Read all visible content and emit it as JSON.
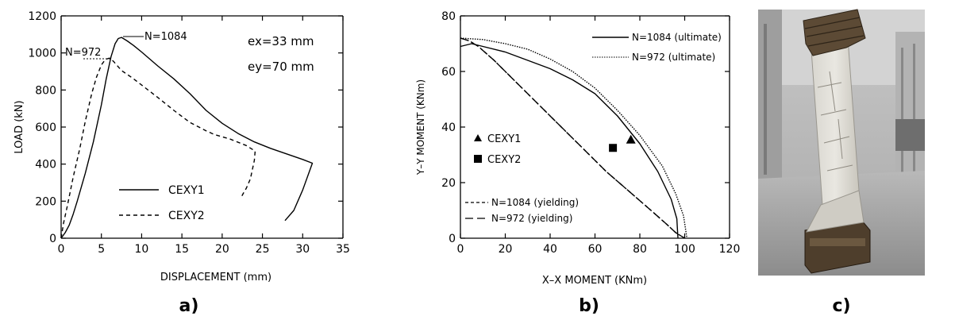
{
  "chart_data": [
    {
      "id": "a",
      "type": "line",
      "caption": "a)",
      "xlabel": "DISPLACEMENT (mm)",
      "ylabel": "LOAD (kN)",
      "xlim": [
        0,
        35
      ],
      "ylim": [
        0,
        1200
      ],
      "xticks": [
        "0",
        "5",
        "10",
        "15",
        "20",
        "25",
        "30",
        "35"
      ],
      "yticks": [
        "0",
        "200",
        "400",
        "600",
        "800",
        "1000",
        "1200"
      ],
      "grid": false,
      "annotations": [
        "N=1084",
        "N=972",
        "ex=33  mm",
        "ey=70  mm"
      ],
      "legend": {
        "placement": "center-left",
        "entries": [
          {
            "label": "CEXY1",
            "style": "solid"
          },
          {
            "label": "CEXY2",
            "style": "dashed"
          }
        ]
      },
      "series": [
        {
          "name": "CEXY1",
          "style": "solid",
          "points": [
            [
              0,
              0
            ],
            [
              0.5,
              30
            ],
            [
              1,
              70
            ],
            [
              1.5,
              130
            ],
            [
              2,
              200
            ],
            [
              3,
              350
            ],
            [
              4,
              520
            ],
            [
              5,
              720
            ],
            [
              5.6,
              860
            ],
            [
              6.2,
              980
            ],
            [
              6.7,
              1050
            ],
            [
              7.1,
              1078
            ],
            [
              7.5,
              1084
            ],
            [
              8.2,
              1065
            ],
            [
              9,
              1040
            ],
            [
              10,
              1005
            ],
            [
              12,
              930
            ],
            [
              14,
              860
            ],
            [
              16,
              780
            ],
            [
              18,
              690
            ],
            [
              20,
              620
            ],
            [
              22,
              565
            ],
            [
              24,
              520
            ],
            [
              26,
              485
            ],
            [
              28,
              455
            ],
            [
              30,
              425
            ],
            [
              31.2,
              405
            ],
            [
              30,
              260
            ],
            [
              28.9,
              150
            ],
            [
              27.8,
              95
            ]
          ]
        },
        {
          "name": "CEXY2",
          "style": "dashed",
          "points": [
            [
              0,
              0
            ],
            [
              0.3,
              80
            ],
            [
              0.8,
              180
            ],
            [
              1.5,
              330
            ],
            [
              2.3,
              480
            ],
            [
              3,
              630
            ],
            [
              3.8,
              780
            ],
            [
              4.4,
              870
            ],
            [
              5,
              935
            ],
            [
              5.5,
              965
            ],
            [
              6,
              972
            ],
            [
              6.5,
              955
            ],
            [
              7.5,
              905
            ],
            [
              9,
              860
            ],
            [
              10.5,
              810
            ],
            [
              12,
              760
            ],
            [
              14,
              690
            ],
            [
              16,
              625
            ],
            [
              18,
              580
            ],
            [
              19,
              560
            ],
            [
              21,
              535
            ],
            [
              23,
              500
            ],
            [
              24.1,
              470
            ],
            [
              24,
              420
            ],
            [
              23.8,
              380
            ],
            [
              23.5,
              320
            ],
            [
              23,
              270
            ],
            [
              22.6,
              240
            ],
            [
              22.3,
              215
            ]
          ]
        }
      ]
    },
    {
      "id": "b",
      "type": "line",
      "caption": "b)",
      "xlabel": "X–X MOMENT (KNm)",
      "ylabel": "Y–Y MOMENT (KNm)",
      "xlim": [
        0,
        120
      ],
      "ylim": [
        0,
        80
      ],
      "xticks": [
        "0",
        "20",
        "40",
        "60",
        "80",
        "100",
        "120"
      ],
      "yticks": [
        "0",
        "20",
        "40",
        "60",
        "80"
      ],
      "grid": false,
      "legend_top": [
        {
          "label": "N=1084 (ultimate)",
          "style": "solid"
        },
        {
          "label": "N=972 (ultimate)",
          "style": "dotted"
        }
      ],
      "legend_bottom": [
        {
          "label": "N=1084 (yielding)",
          "style": "short-dash"
        },
        {
          "label": "N=972 (yielding)",
          "style": "long-dash"
        }
      ],
      "series": [
        {
          "name": "N=1084 (ultimate)",
          "style": "solid",
          "points": [
            [
              0,
              69
            ],
            [
              5,
              70
            ],
            [
              10,
              69
            ],
            [
              20,
              67
            ],
            [
              30,
              64
            ],
            [
              40,
              61
            ],
            [
              50,
              57
            ],
            [
              60,
              52
            ],
            [
              70,
              44
            ],
            [
              80,
              34
            ],
            [
              88,
              24
            ],
            [
              94,
              14
            ],
            [
              96.5,
              7
            ],
            [
              97,
              0
            ]
          ]
        },
        {
          "name": "N=972 (ultimate)",
          "style": "dotted",
          "points": [
            [
              0,
              72
            ],
            [
              10,
              71.5
            ],
            [
              20,
              70
            ],
            [
              30,
              68
            ],
            [
              40,
              64.5
            ],
            [
              50,
              60
            ],
            [
              60,
              54
            ],
            [
              70,
              46
            ],
            [
              80,
              37
            ],
            [
              90,
              26
            ],
            [
              96,
              16
            ],
            [
              99.5,
              8
            ],
            [
              101,
              0
            ]
          ]
        },
        {
          "name": "N=1084 (yielding)",
          "style": "short-dash",
          "points": [
            [
              0,
              72
            ],
            [
              4,
              71
            ],
            [
              8,
              69
            ],
            [
              15,
              64
            ],
            [
              25,
              56
            ],
            [
              35,
              48
            ],
            [
              45,
              40
            ],
            [
              55,
              32
            ],
            [
              65,
              24
            ],
            [
              75,
              17
            ],
            [
              85,
              10
            ],
            [
              92,
              5
            ],
            [
              96,
              2
            ],
            [
              100,
              0
            ]
          ]
        },
        {
          "name": "N=972 (yielding)",
          "style": "long-dash",
          "points": [
            [
              0,
              72
            ],
            [
              4,
              71
            ],
            [
              8,
              69
            ],
            [
              15,
              64
            ],
            [
              25,
              56
            ],
            [
              35,
              48
            ],
            [
              45,
              40
            ],
            [
              55,
              32
            ],
            [
              65,
              24
            ],
            [
              75,
              17
            ],
            [
              85,
              10
            ],
            [
              92,
              5
            ],
            [
              96,
              2
            ],
            [
              100,
              0
            ]
          ]
        }
      ],
      "markers": [
        {
          "label": "CEXY1",
          "shape": "triangle",
          "x": 76,
          "y": 35.5
        },
        {
          "label": "CEXY2",
          "shape": "square",
          "x": 68,
          "y": 32.5
        }
      ]
    }
  ],
  "photo": {
    "caption": "c)",
    "description_icon": "test-column-photo"
  }
}
